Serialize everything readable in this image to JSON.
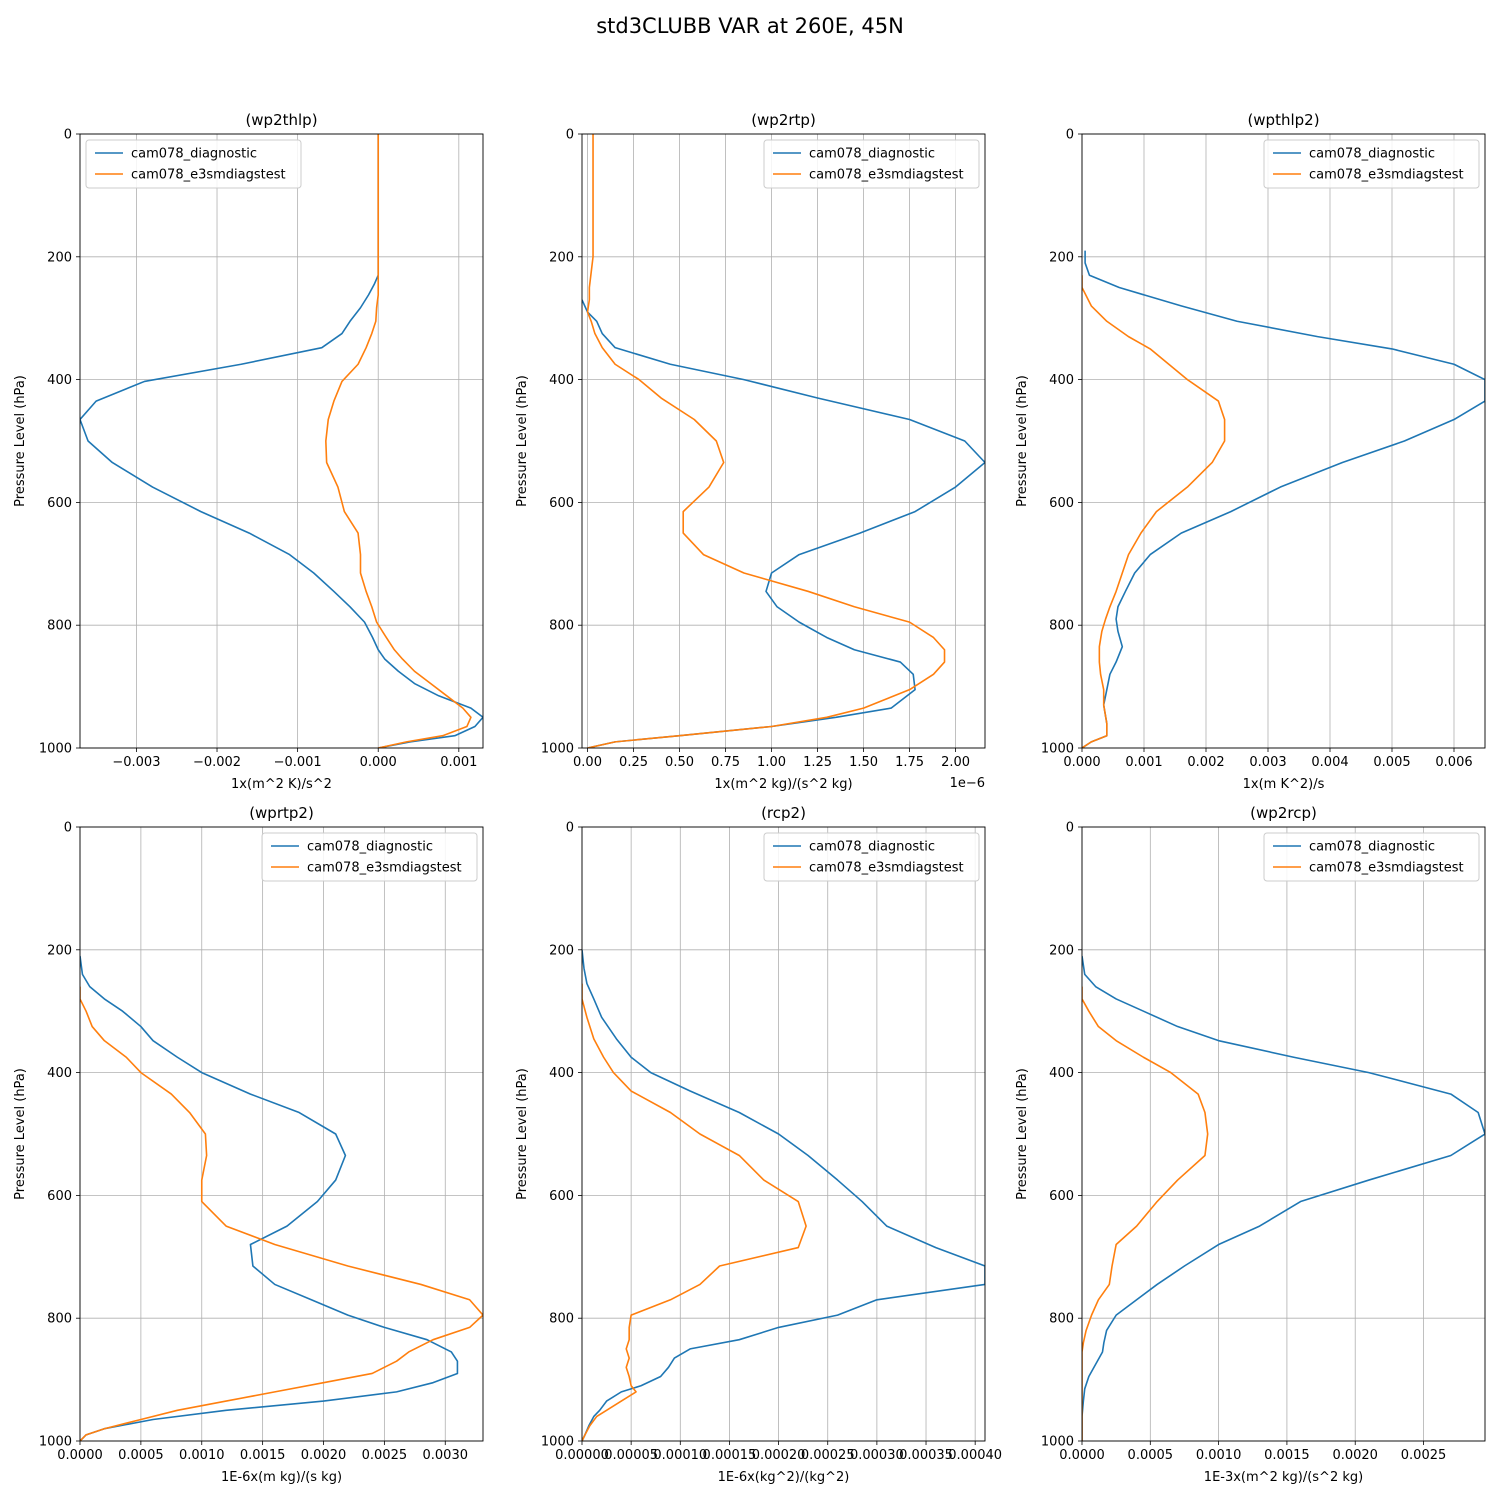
{
  "figure": {
    "title": "std3CLUBB VAR at 260E, 45N"
  },
  "colors": {
    "diagnostic": "#1f77b4",
    "e3smdiagstest": "#ff7f0e",
    "grid": "#b0b0b0"
  },
  "chart_data": [
    {
      "type": "line",
      "title": "(wp2thlp)",
      "xlabel": "1x(m^2 K)/s^2",
      "ylabel": "Pressure Level (hPa)",
      "xlim": [
        -0.0037,
        0.0013
      ],
      "ylim": [
        1000,
        0
      ],
      "xticks": [
        -0.003,
        -0.002,
        -0.001,
        0.0,
        0.001
      ],
      "xticklabels": [
        "−0.003",
        "−0.002",
        "−0.001",
        "0.000",
        "0.001"
      ],
      "yticks": [
        0,
        200,
        400,
        600,
        800,
        1000
      ],
      "grid": true,
      "legend": "upper left",
      "pressure": [
        0,
        100,
        200,
        230,
        245,
        262,
        283,
        305,
        325,
        348,
        375,
        403,
        435,
        465,
        500,
        535,
        575,
        615,
        650,
        685,
        715,
        745,
        770,
        795,
        820,
        840,
        855,
        875,
        895,
        915,
        935,
        950,
        965,
        980,
        990,
        1000
      ],
      "series": [
        {
          "name": "cam078_diagnostic",
          "x": [
            0,
            0,
            0,
            0,
            -5e-05,
            -0.00012,
            -0.00022,
            -0.00035,
            -0.00045,
            -0.0007,
            -0.0017,
            -0.0029,
            -0.0035,
            -0.0037,
            -0.0036,
            -0.0033,
            -0.0028,
            -0.0022,
            -0.0016,
            -0.0011,
            -0.0008,
            -0.00055,
            -0.00035,
            -0.00017,
            -7e-05,
            0.0,
            8e-05,
            0.00025,
            0.00045,
            0.00075,
            0.00115,
            0.0013,
            0.0012,
            0.00095,
            0.0004,
            0.0
          ]
        },
        {
          "name": "cam078_e3smdiagstest",
          "x": [
            0,
            0,
            0,
            0,
            0,
            0,
            -2e-05,
            -3e-05,
            -8e-05,
            -0.00015,
            -0.00025,
            -0.00045,
            -0.00055,
            -0.00062,
            -0.00065,
            -0.00064,
            -0.0005,
            -0.00042,
            -0.00025,
            -0.00022,
            -0.00022,
            -0.00015,
            -8e-05,
            -2e-05,
            0.0001,
            0.0002,
            0.0003,
            0.00045,
            0.00065,
            0.00085,
            0.00105,
            0.00115,
            0.0011,
            0.0008,
            0.00035,
            0.0
          ]
        }
      ]
    },
    {
      "type": "line",
      "title": "(wp2rtp)",
      "xlabel": "1x(m^2 kg)/(s^2 kg)",
      "ylabel": "Pressure Level (hPa)",
      "offset_label": "1e−6",
      "xlim": [
        -0.03,
        2.16
      ],
      "ylim": [
        1000,
        0
      ],
      "xticks": [
        0.0,
        0.25,
        0.5,
        0.75,
        1.0,
        1.25,
        1.5,
        1.75,
        2.0
      ],
      "xticklabels": [
        "0.00",
        "0.25",
        "0.50",
        "0.75",
        "1.00",
        "1.25",
        "1.50",
        "1.75",
        "2.00"
      ],
      "yticks": [
        0,
        200,
        400,
        600,
        800,
        1000
      ],
      "grid": true,
      "legend": "upper right",
      "pressure": [
        0,
        100,
        200,
        225,
        250,
        270,
        290,
        305,
        325,
        348,
        375,
        400,
        430,
        465,
        500,
        535,
        575,
        615,
        650,
        685,
        715,
        745,
        770,
        795,
        820,
        840,
        860,
        880,
        905,
        935,
        950,
        965,
        980,
        990,
        1000
      ],
      "series": [
        {
          "name": "cam078_diagnostic",
          "x": [
            null,
            null,
            null,
            null,
            null,
            -0.03,
            0.0,
            0.05,
            0.08,
            0.15,
            0.45,
            0.85,
            1.25,
            1.75,
            2.05,
            2.16,
            2.0,
            1.78,
            1.48,
            1.15,
            1.0,
            0.97,
            1.03,
            1.15,
            1.3,
            1.45,
            1.7,
            1.77,
            1.78,
            1.65,
            1.35,
            1.0,
            0.5,
            0.15,
            0.0
          ]
        },
        {
          "name": "cam078_e3smdiagstest",
          "x": [
            0.03,
            0.03,
            0.03,
            0.02,
            0.01,
            0.01,
            0.0,
            0.02,
            0.04,
            0.08,
            0.15,
            0.28,
            0.4,
            0.58,
            0.7,
            0.74,
            0.66,
            0.52,
            0.52,
            0.63,
            0.85,
            1.2,
            1.45,
            1.75,
            1.88,
            1.94,
            1.94,
            1.88,
            1.75,
            1.5,
            1.3,
            1.0,
            0.5,
            0.15,
            0.0
          ]
        }
      ]
    },
    {
      "type": "line",
      "title": "(wpthlp2)",
      "xlabel": "1x(m K^2)/s",
      "ylabel": "Pressure Level (hPa)",
      "xlim": [
        0.0,
        0.0065
      ],
      "ylim": [
        1000,
        0
      ],
      "xticks": [
        0.0,
        0.001,
        0.002,
        0.003,
        0.004,
        0.005,
        0.006
      ],
      "xticklabels": [
        "0.000",
        "0.001",
        "0.002",
        "0.003",
        "0.004",
        "0.005",
        "0.006"
      ],
      "yticks": [
        0,
        200,
        400,
        600,
        800,
        1000
      ],
      "grid": true,
      "legend": "upper right",
      "pressure": [
        190,
        210,
        230,
        250,
        280,
        305,
        330,
        350,
        375,
        400,
        435,
        465,
        500,
        535,
        575,
        615,
        650,
        685,
        715,
        745,
        770,
        790,
        810,
        835,
        860,
        880,
        905,
        930,
        960,
        980,
        990,
        1000
      ],
      "series": [
        {
          "name": "cam078_diagnostic",
          "x": [
            5e-05,
            5e-05,
            0.00012,
            0.0006,
            0.0016,
            0.0025,
            0.0038,
            0.005,
            0.006,
            0.0065,
            0.0065,
            0.006,
            0.0052,
            0.0042,
            0.0032,
            0.0024,
            0.0016,
            0.0011,
            0.00085,
            0.0007,
            0.00058,
            0.00055,
            0.00058,
            0.00065,
            0.00055,
            0.00045,
            0.0004,
            0.00035,
            0.0004,
            0.0004,
            0.00015,
            0.0
          ]
        },
        {
          "name": "cam078_e3smdiagstest",
          "x": [
            null,
            null,
            0.0,
            0.0,
            0.00015,
            0.0004,
            0.00075,
            0.0011,
            0.0014,
            0.0017,
            0.0022,
            0.0023,
            0.0023,
            0.0021,
            0.0017,
            0.0012,
            0.00095,
            0.00075,
            0.00065,
            0.00055,
            0.00045,
            0.00038,
            0.00032,
            0.00028,
            0.00028,
            0.0003,
            0.00035,
            0.00035,
            0.0004,
            0.0004,
            0.00015,
            0.0
          ]
        }
      ]
    },
    {
      "type": "line",
      "title": "(wprtp2)",
      "xlabel": "1E-6x(m kg)/(s kg)",
      "ylabel": "Pressure Level (hPa)",
      "xlim": [
        0.0,
        0.00331
      ],
      "ylim": [
        1000,
        0
      ],
      "xticks": [
        0.0,
        0.0005,
        0.001,
        0.0015,
        0.002,
        0.0025,
        0.003
      ],
      "xticklabels": [
        "0.0000",
        "0.0005",
        "0.0010",
        "0.0015",
        "0.0020",
        "0.0025",
        "0.0030"
      ],
      "yticks": [
        0,
        200,
        400,
        600,
        800,
        1000
      ],
      "grid": true,
      "legend": "upper right",
      "pressure": [
        210,
        240,
        260,
        280,
        300,
        325,
        348,
        375,
        400,
        435,
        465,
        500,
        535,
        575,
        610,
        650,
        680,
        715,
        745,
        770,
        795,
        815,
        835,
        855,
        870,
        890,
        905,
        920,
        935,
        950,
        965,
        980,
        990,
        1000
      ],
      "series": [
        {
          "name": "cam078_diagnostic",
          "x": [
            0.0,
            2e-05,
            8e-05,
            0.0002,
            0.00035,
            0.0005,
            0.0006,
            0.0008,
            0.001,
            0.0014,
            0.0018,
            0.0021,
            0.00218,
            0.0021,
            0.00195,
            0.0017,
            0.0014,
            0.00142,
            0.0016,
            0.0019,
            0.0022,
            0.0025,
            0.00285,
            0.00305,
            0.0031,
            0.0031,
            0.0029,
            0.0026,
            0.002,
            0.0012,
            0.0006,
            0.0002,
            5e-05,
            0.0
          ]
        },
        {
          "name": "cam078_e3smdiagstest",
          "x": [
            null,
            null,
            0.0,
            0.0,
            5e-05,
            0.0001,
            0.0002,
            0.00038,
            0.0005,
            0.00075,
            0.0009,
            0.00103,
            0.00104,
            0.001,
            0.001,
            0.0012,
            0.0016,
            0.0022,
            0.0028,
            0.0032,
            0.00331,
            0.0032,
            0.0029,
            0.0027,
            0.0026,
            0.0024,
            0.002,
            0.0016,
            0.0012,
            0.0008,
            0.0005,
            0.0002,
            5e-05,
            0.0
          ]
        }
      ]
    },
    {
      "type": "line",
      "title": "(rcp2)",
      "xlabel": "1E-6x(kg^2)/(kg^2)",
      "ylabel": "Pressure Level (hPa)",
      "xlim": [
        0.0,
        0.00041
      ],
      "ylim": [
        1000,
        0
      ],
      "xticks": [
        0.0,
        5e-05,
        0.0001,
        0.00015,
        0.0002,
        0.00025,
        0.0003,
        0.00035,
        0.0004
      ],
      "xticklabels": [
        "0.00000",
        "0.00005",
        "0.00010",
        "0.00015",
        "0.00020",
        "0.00025",
        "0.00030",
        "0.00035",
        "0.00040"
      ],
      "yticks": [
        0,
        200,
        400,
        600,
        800,
        1000
      ],
      "grid": true,
      "legend": "upper right",
      "pressure": [
        200,
        230,
        255,
        280,
        310,
        345,
        375,
        400,
        430,
        465,
        500,
        535,
        575,
        610,
        650,
        685,
        715,
        745,
        770,
        795,
        815,
        835,
        850,
        865,
        880,
        895,
        910,
        920,
        935,
        950,
        960,
        975,
        990,
        1000
      ],
      "series": [
        {
          "name": "cam078_diagnostic",
          "x": [
            0.0,
            2e-06,
            5e-06,
            1.2e-05,
            2e-05,
            3.5e-05,
            5e-05,
            7e-05,
            0.00011,
            0.00016,
            0.0002,
            0.00023,
            0.00026,
            0.000285,
            0.00031,
            0.00036,
            0.00041,
            0.00041,
            0.0003,
            0.00026,
            0.0002,
            0.00016,
            0.00011,
            9.4e-05,
            8.8e-05,
            8e-05,
            6e-05,
            4e-05,
            2.5e-05,
            1.8e-05,
            1.2e-05,
            7e-06,
            3e-06,
            0.0
          ]
        },
        {
          "name": "cam078_e3smdiagstest",
          "x": [
            null,
            null,
            0.0,
            0.0,
            5e-06,
            1.2e-05,
            2.2e-05,
            3.2e-05,
            5e-05,
            9e-05,
            0.00012,
            0.00016,
            0.000185,
            0.00022,
            0.000228,
            0.00022,
            0.00014,
            0.00012,
            9e-05,
            5e-05,
            4.8e-05,
            4.8e-05,
            4.5e-05,
            4.8e-05,
            4.5e-05,
            4.8e-05,
            5e-05,
            5.5e-05,
            4e-05,
            2.5e-05,
            1.5e-05,
            8e-06,
            3e-06,
            0.0
          ]
        }
      ]
    },
    {
      "type": "line",
      "title": "(wp2rcp)",
      "xlabel": "1E-3x(m^2 kg)/(s^2 kg)",
      "ylabel": "Pressure Level (hPa)",
      "xlim": [
        0.0,
        0.00295
      ],
      "ylim": [
        1000,
        0
      ],
      "xticks": [
        0.0,
        0.0005,
        0.001,
        0.0015,
        0.002,
        0.0025
      ],
      "xticklabels": [
        "0.0000",
        "0.0005",
        "0.0010",
        "0.0015",
        "0.0020",
        "0.0025"
      ],
      "yticks": [
        0,
        200,
        400,
        600,
        800,
        1000
      ],
      "grid": true,
      "legend": "upper right",
      "pressure": [
        210,
        240,
        260,
        280,
        300,
        325,
        348,
        375,
        400,
        435,
        465,
        500,
        535,
        575,
        610,
        650,
        680,
        715,
        745,
        770,
        795,
        820,
        840,
        855,
        875,
        895,
        915,
        935,
        960,
        980,
        1000
      ],
      "series": [
        {
          "name": "cam078_diagnostic",
          "x": [
            0.0,
            2e-05,
            0.0001,
            0.00025,
            0.00045,
            0.0007,
            0.001,
            0.00155,
            0.0021,
            0.0027,
            0.0029,
            0.00295,
            0.0027,
            0.0021,
            0.0016,
            0.0013,
            0.001,
            0.00075,
            0.00055,
            0.0004,
            0.00025,
            0.00018,
            0.00016,
            0.00015,
            0.0001,
            5e-05,
            2e-05,
            1e-05,
            0.0,
            0.0,
            0.0
          ]
        },
        {
          "name": "cam078_e3smdiagstest",
          "x": [
            null,
            null,
            0.0,
            0.0,
            5e-05,
            0.00012,
            0.00025,
            0.00045,
            0.00065,
            0.00085,
            0.0009,
            0.00092,
            0.0009,
            0.0007,
            0.00055,
            0.0004,
            0.00025,
            0.00022,
            0.0002,
            0.00012,
            7e-05,
            3e-05,
            1e-05,
            0.0,
            0.0,
            0.0,
            0.0,
            0.0,
            0.0,
            0.0,
            0.0
          ]
        }
      ]
    }
  ]
}
